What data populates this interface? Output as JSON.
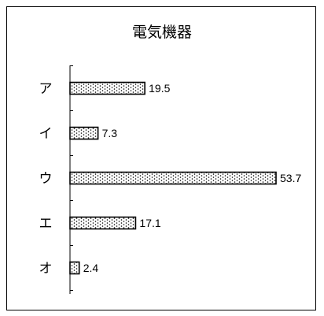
{
  "chart_data": {
    "type": "bar",
    "orientation": "horizontal",
    "title": "電気機器",
    "categories": [
      "ア",
      "イ",
      "ウ",
      "エ",
      "オ"
    ],
    "values": [
      19.5,
      7.3,
      53.7,
      17.1,
      2.4
    ],
    "value_labels": [
      "19.5",
      "7.3",
      "53.7",
      "17.1",
      "2.4"
    ],
    "xlim": [
      0,
      53.7
    ],
    "grid": false,
    "legend": "none",
    "bar_pattern": "dotted",
    "colors": {
      "bar_fill": "#ffffff",
      "bar_stroke": "#000000",
      "dot": "#000000"
    }
  }
}
